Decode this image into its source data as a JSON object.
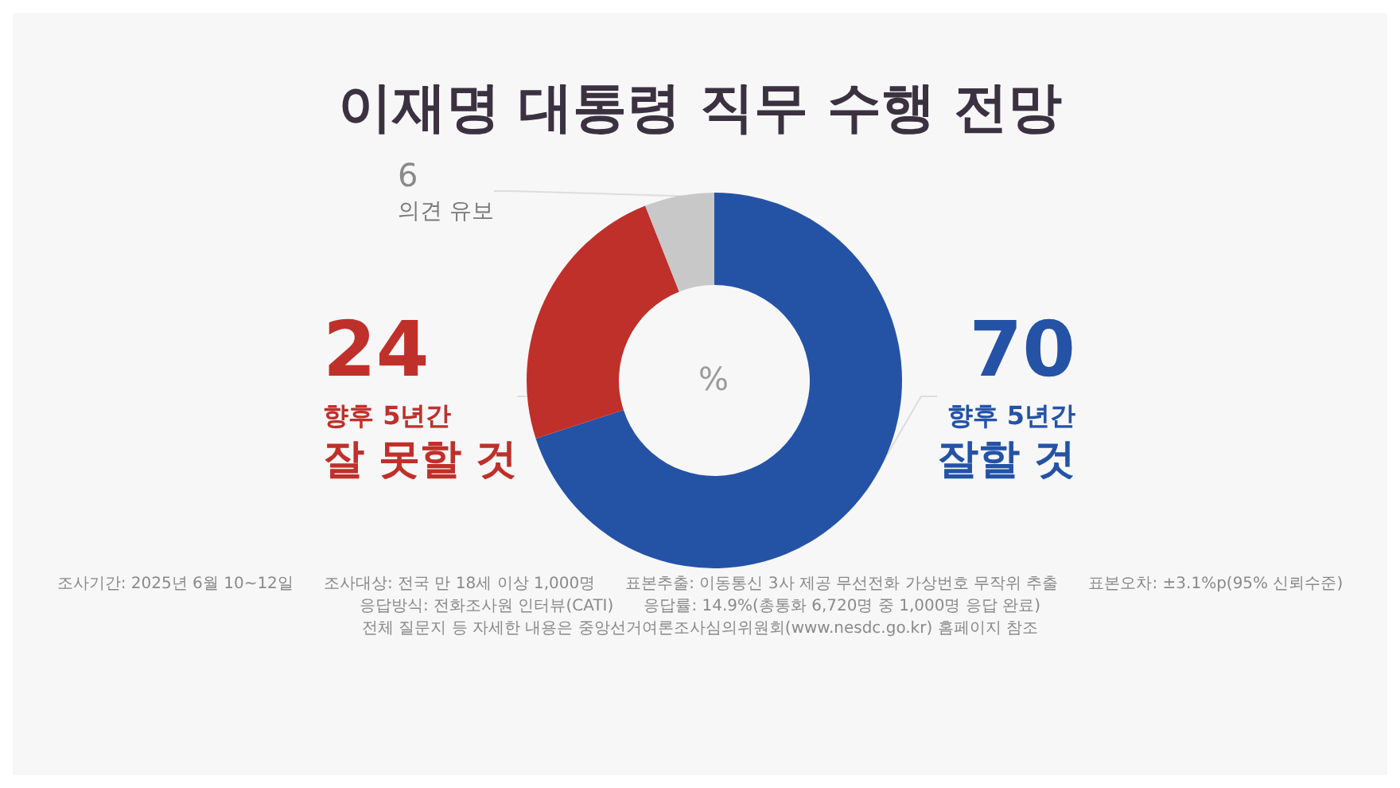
{
  "chart_data": {
    "type": "donut",
    "title": "이재명 대통령 직무 수행 전망",
    "categories": [
      "향후 5년간\n잘할 것",
      "향후 5년간\n잘 못할 것",
      "의견 유보"
    ],
    "values": [
      70,
      24,
      6
    ],
    "colors": [
      "#2453a6",
      "#c0302a",
      "#c8c8c8"
    ],
    "data_labels": true,
    "legend": false,
    "annotations": [
      "%",
      "조사기간: 2025년 6월 10~12일",
      "조사대상: 전국 만 18세 이상 1,000명",
      "표본추출: 이동통신 3사 제공 무선전화 가상번호 무작위 추출",
      "표본오차: ±3.1%p(95% 신뢰수준)",
      "응답방식: 전화조사원 인터뷰(CATI)",
      "응답률: 14.9%(총통화 6,720명 중 1,000명 응답 완료)",
      "전체 질문지 등 자세한 내용은 중앙선거여론조사심의위원회(www.nesdc.go.kr) 홈페이지 참조"
    ]
  }
}
